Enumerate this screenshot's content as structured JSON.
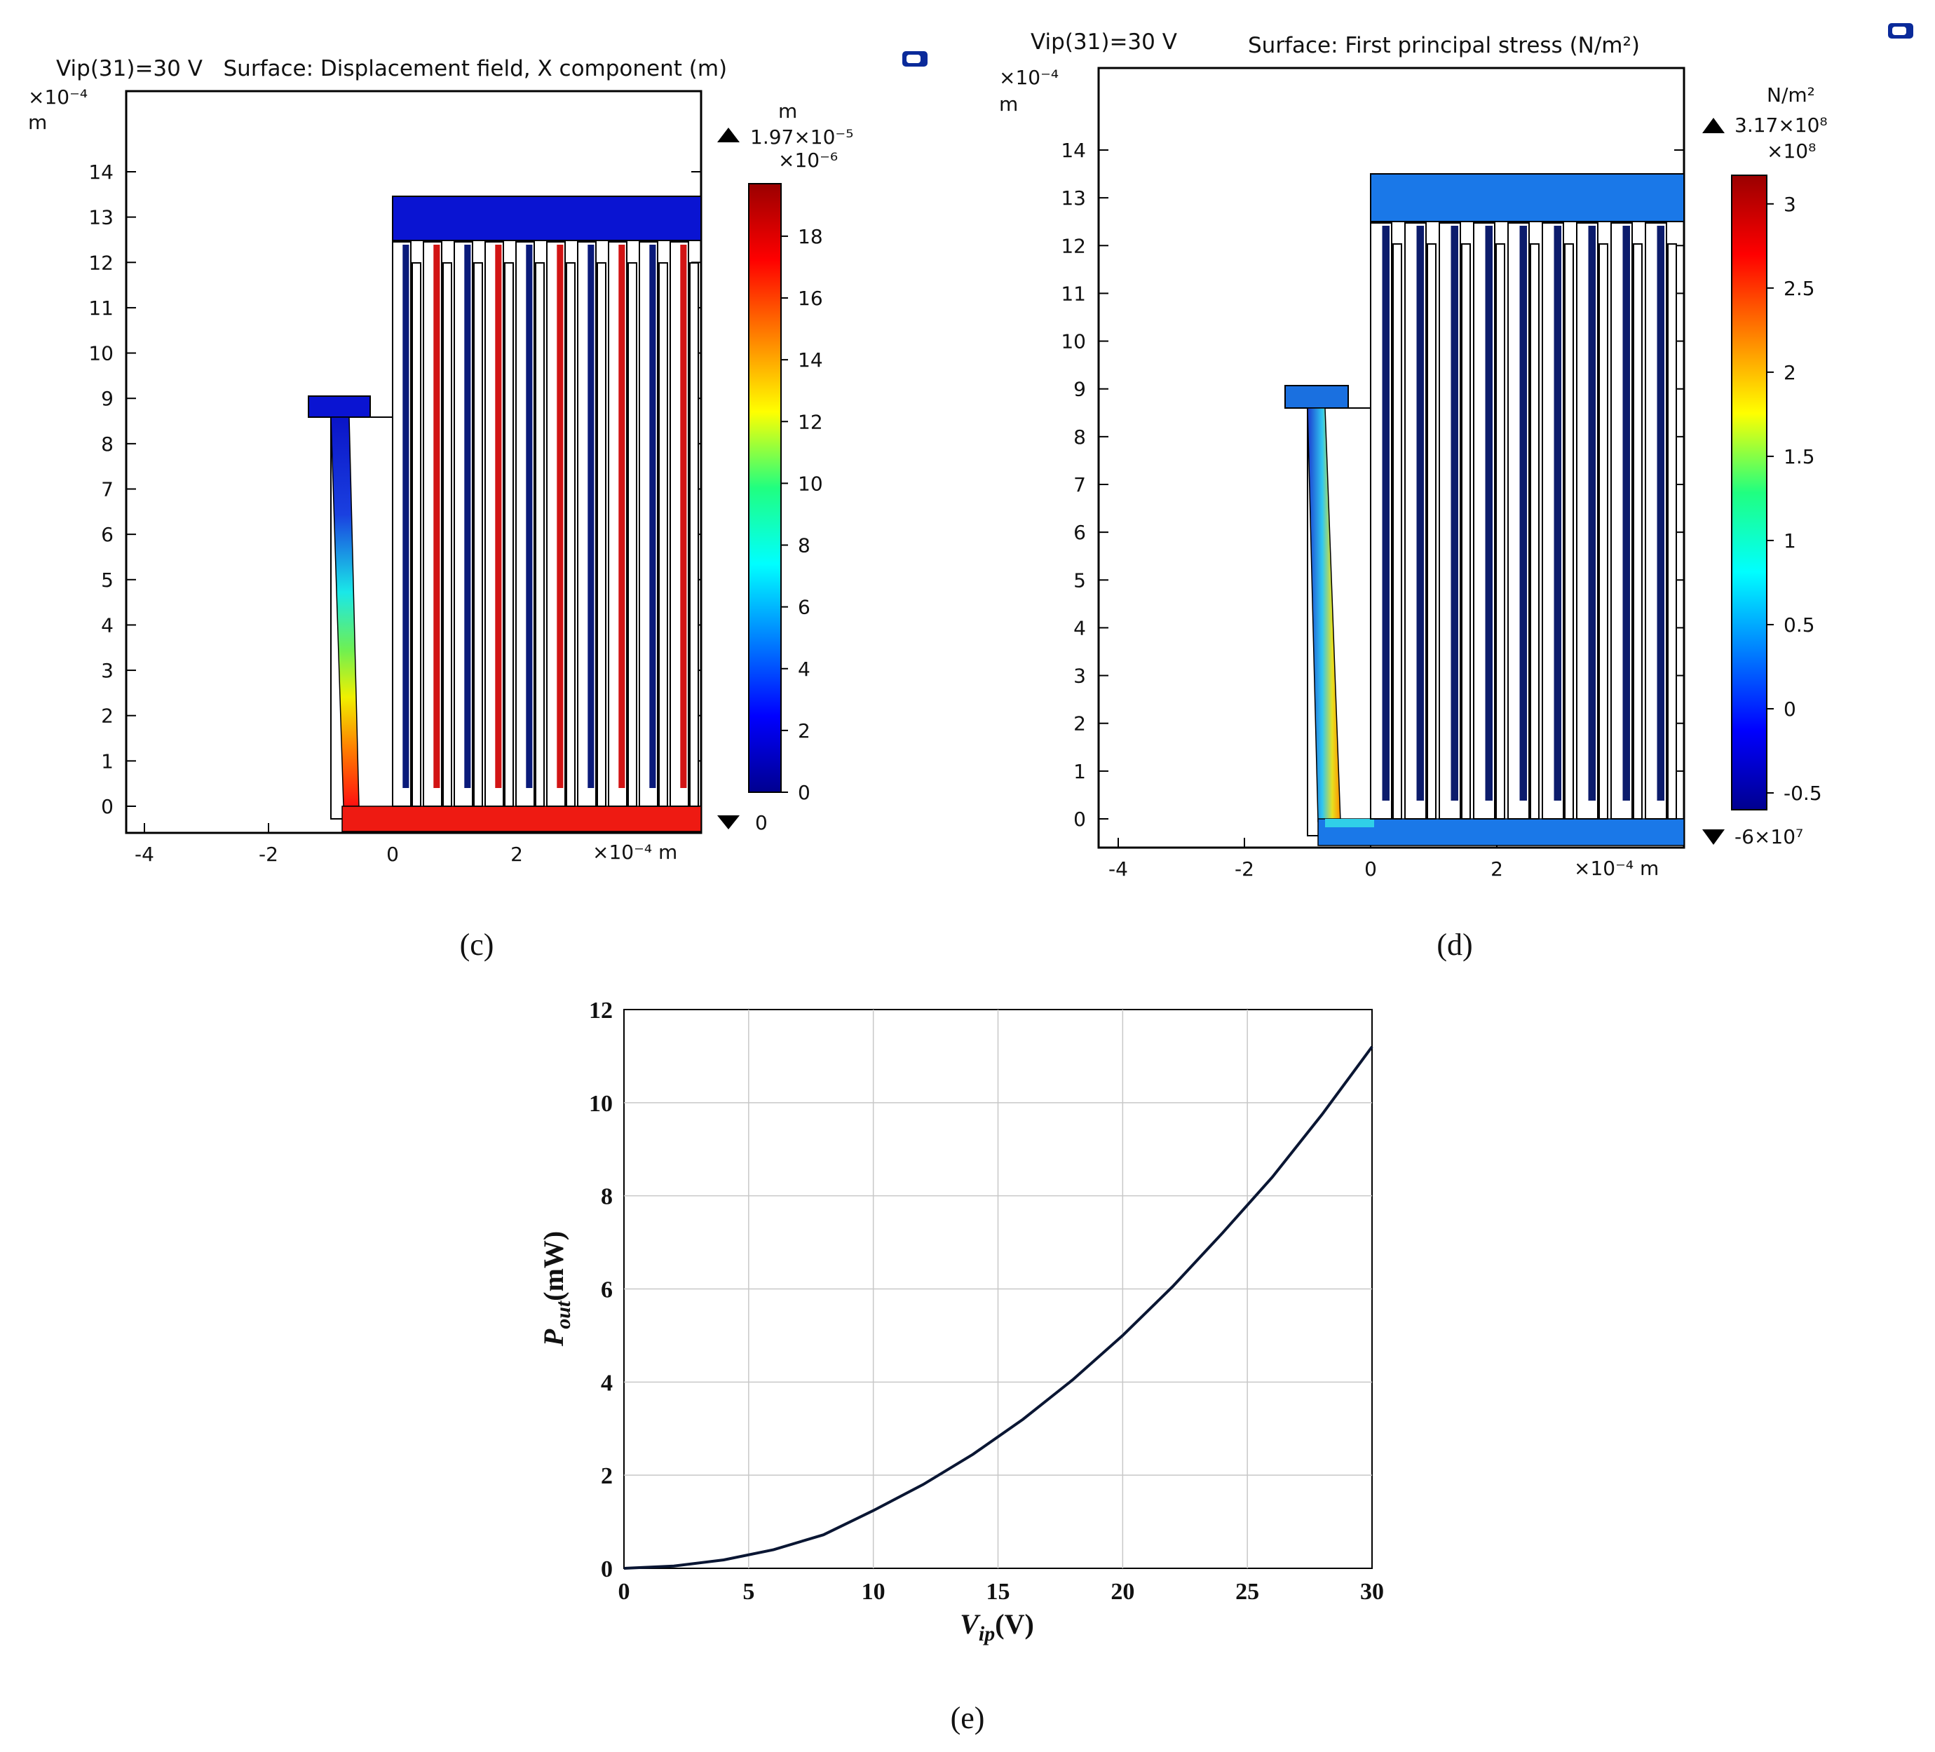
{
  "panel_c": {
    "title": "Vip(31)=30 V   Surface: Displacement field, X component (m)",
    "caption": "(c)",
    "y_exponent": "×10⁻⁴",
    "y_unit": "m",
    "x_axis_unit": "×10⁻⁴ m",
    "colorbar": {
      "unit": "m",
      "max_label": "1.97×10⁻⁵",
      "scale_label": "×10⁻⁶",
      "min_label": "0",
      "ticks": [
        "18",
        "16",
        "14",
        "12",
        "10",
        "8",
        "6",
        "4",
        "2",
        "0"
      ]
    },
    "y_ticks": [
      "14",
      "13",
      "12",
      "11",
      "10",
      "9",
      "8",
      "7",
      "6",
      "5",
      "4",
      "3",
      "2",
      "1",
      "0"
    ],
    "x_ticks": [
      "-4",
      "-2",
      "0",
      "2"
    ],
    "colors": {
      "top_bar": "#0a14d2",
      "bottom_bar": "#ee1a12",
      "finger_red": "#d21414",
      "finger_blue": "#0a1a7a"
    }
  },
  "panel_d": {
    "title_left": "Vip(31)=30 V",
    "title_right": "Surface: First principal stress (N/m²)",
    "caption": "(d)",
    "y_exponent": "×10⁻⁴",
    "y_unit": "m",
    "x_axis_unit": "×10⁻⁴ m",
    "colorbar": {
      "unit": "N/m²",
      "max_label": "3.17×10⁸",
      "scale_label": "×10⁸",
      "min_label": "-6×10⁷",
      "ticks": [
        "3",
        "2.5",
        "2",
        "1.5",
        "1",
        "0.5",
        "0",
        "-0.5"
      ]
    },
    "y_ticks": [
      "14",
      "13",
      "12",
      "11",
      "10",
      "9",
      "8",
      "7",
      "6",
      "5",
      "4",
      "3",
      "2",
      "1",
      "0"
    ],
    "x_ticks": [
      "-4",
      "-2",
      "0",
      "2"
    ],
    "colors": {
      "top_bar": "#1a78e8",
      "bottom_bar": "#1a78e8",
      "finger_blue": "#0c1c6c"
    }
  },
  "panel_e": {
    "caption": "(e)",
    "ylabel_main": "P",
    "ylabel_sub": "out",
    "ylabel_unit": "(mW)",
    "xlabel_main": "V",
    "xlabel_sub": "ip",
    "xlabel_unit": "(V)"
  },
  "chart_data": {
    "type": "line",
    "title": "",
    "xlabel": "Vip(V)",
    "ylabel": "Pout(mW)",
    "xlim": [
      0,
      30
    ],
    "ylim": [
      0,
      12
    ],
    "grid": true,
    "x_ticks": [
      0,
      5,
      10,
      15,
      20,
      25,
      30
    ],
    "y_ticks": [
      0,
      2,
      4,
      6,
      8,
      10,
      12
    ],
    "series": [
      {
        "color": "#0a1633",
        "x": [
          0,
          2,
          4,
          6,
          8,
          10,
          12,
          14,
          16,
          18,
          20,
          22,
          24,
          26,
          28,
          30
        ],
        "y": [
          0.0,
          0.05,
          0.18,
          0.4,
          0.72,
          1.24,
          1.8,
          2.45,
          3.2,
          4.05,
          5.0,
          6.05,
          7.2,
          8.4,
          9.75,
          11.2
        ]
      }
    ]
  }
}
